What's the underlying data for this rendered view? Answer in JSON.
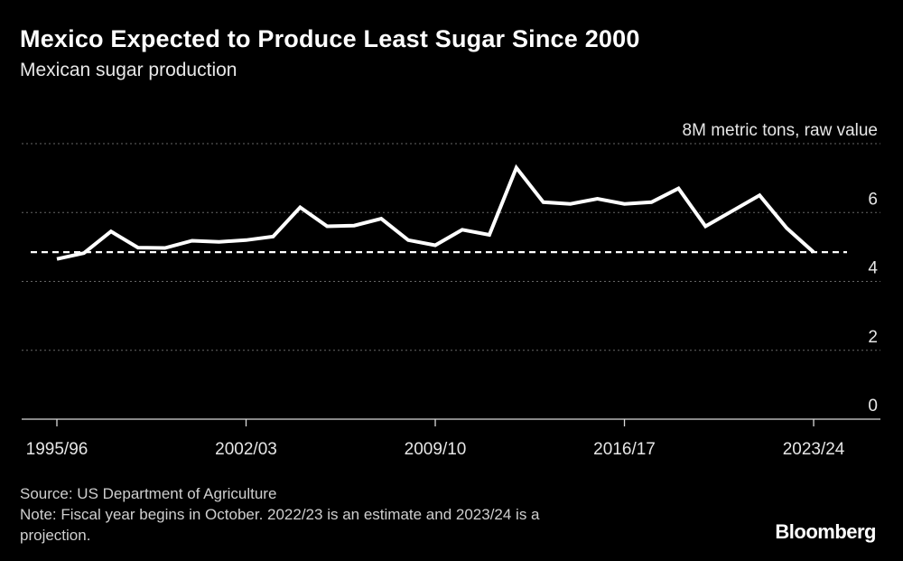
{
  "header": {
    "title": "Mexico Expected to Produce Least Sugar Since 2000",
    "subtitle": "Mexican sugar production"
  },
  "footer": {
    "source": "Source: US Department of Agriculture",
    "note_line1": "Note: Fiscal year begins in October. 2022/23 is an estimate and 2023/24 is a",
    "note_line2": "projection."
  },
  "brand": {
    "logo_text": "Bloomberg"
  },
  "colors": {
    "background": "#000000",
    "line": "#ffffff",
    "grid": "#666666",
    "reference_line": "#ffffff"
  },
  "chart_data": {
    "type": "line",
    "title": "Mexico Expected to Produce Least Sugar Since 2000",
    "subtitle": "Mexican sugar production",
    "unit_label": "8M metric tons, raw value",
    "xlabel": "",
    "ylabel": "",
    "ylim": [
      0,
      8
    ],
    "yticks": [
      0,
      2,
      4,
      6,
      8
    ],
    "ytick_labels": [
      "0",
      "2",
      "4",
      "6",
      "8M metric tons, raw value"
    ],
    "x_tick_labels": [
      "1995/96",
      "2002/03",
      "2009/10",
      "2016/17",
      "2023/24"
    ],
    "x_tick_indices": [
      0,
      7,
      14,
      21,
      28
    ],
    "grid": true,
    "legend": "none",
    "reference_line": {
      "value": 4.85,
      "style": "dashed",
      "label": ""
    },
    "series": [
      {
        "name": "Mexican sugar production",
        "x": [
          "1995/96",
          "1996/97",
          "1997/98",
          "1998/99",
          "1999/00",
          "2000/01",
          "2001/02",
          "2002/03",
          "2003/04",
          "2004/05",
          "2005/06",
          "2006/07",
          "2007/08",
          "2008/09",
          "2009/10",
          "2010/11",
          "2011/12",
          "2012/13",
          "2013/14",
          "2014/15",
          "2015/16",
          "2016/17",
          "2017/18",
          "2018/19",
          "2019/20",
          "2020/21",
          "2021/22",
          "2022/23",
          "2023/24"
        ],
        "values": [
          4.65,
          4.82,
          5.45,
          4.98,
          4.97,
          5.18,
          5.15,
          5.2,
          5.3,
          6.15,
          5.6,
          5.62,
          5.82,
          5.2,
          5.05,
          5.5,
          5.35,
          7.3,
          6.3,
          6.25,
          6.4,
          6.25,
          6.3,
          6.7,
          5.6,
          6.05,
          6.5,
          5.55,
          4.85
        ]
      }
    ]
  }
}
